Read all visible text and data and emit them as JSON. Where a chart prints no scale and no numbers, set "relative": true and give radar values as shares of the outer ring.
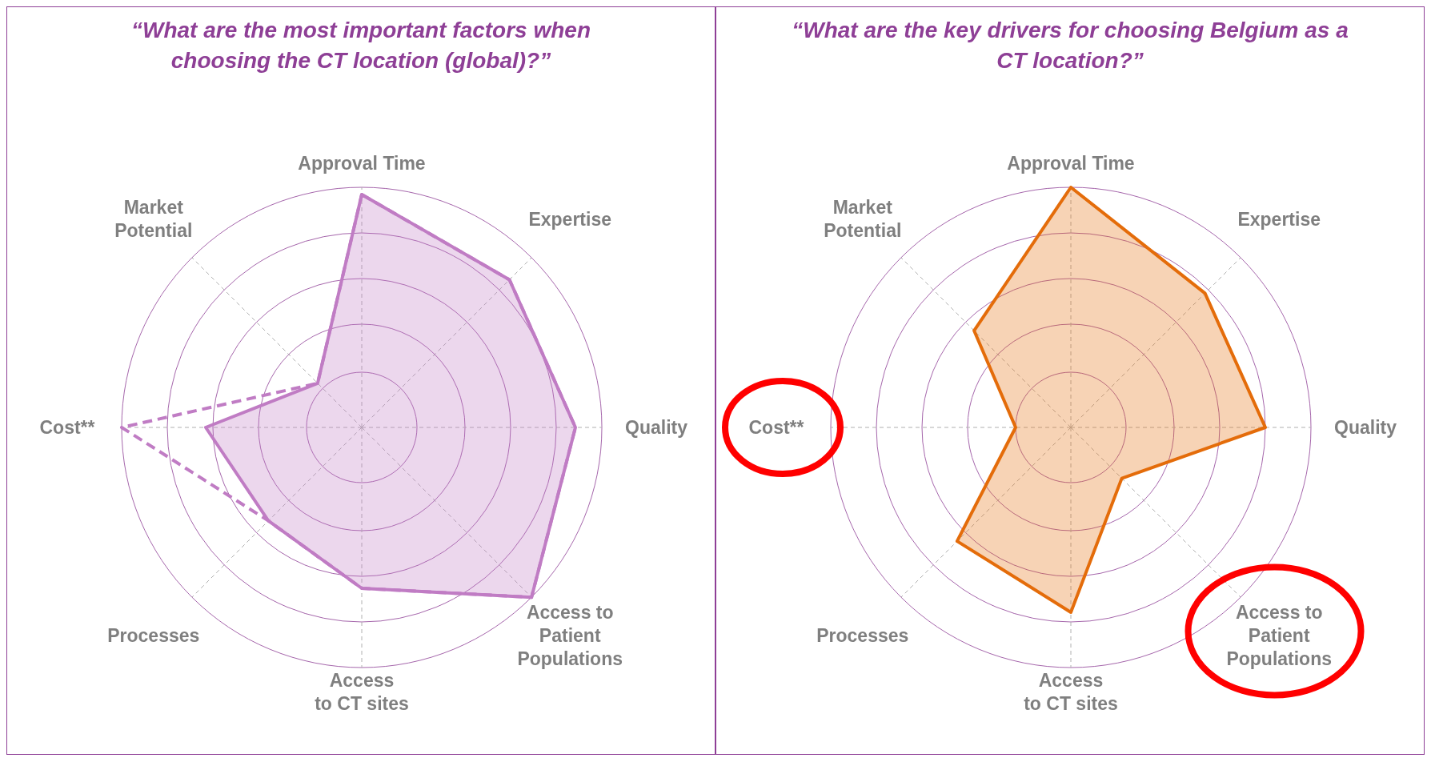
{
  "chart_data": [
    {
      "type": "radar",
      "title": "“What are the most important factors when choosing the CT location (global)?”",
      "categories": [
        "Approval Time",
        "Expertise",
        "Quality",
        "Access to\nPatient\nPopulations",
        "Access\nto CT sites",
        "Processes",
        "Cost**",
        "Market\nPotential"
      ],
      "relative": true,
      "grid": true,
      "series": [
        {
          "color": "#c07cc4",
          "line_style": "dashed",
          "values": [
            0.97,
            0.87,
            0.89,
            1.0,
            0.67,
            0.55,
            1.0,
            0.26
          ]
        },
        {
          "color": "#c07cc4",
          "line_style": "solid",
          "values": [
            0.97,
            0.87,
            0.89,
            1.0,
            0.67,
            0.55,
            0.65,
            0.26
          ]
        }
      ]
    },
    {
      "type": "radar",
      "title": "“What are the key drivers for choosing Belgium as a CT location?”",
      "categories": [
        "Approval Time",
        "Expertise",
        "Quality",
        "Access to\nPatient\nPopulations",
        "Access\nto CT sites",
        "Processes",
        "Cost**",
        "Market\nPotential"
      ],
      "relative": true,
      "grid": true,
      "series": [
        {
          "color": "#e46c0a",
          "line_style": "solid",
          "values": [
            1.0,
            0.79,
            0.81,
            0.3,
            0.77,
            0.67,
            0.23,
            0.57
          ]
        }
      ]
    }
  ]
}
